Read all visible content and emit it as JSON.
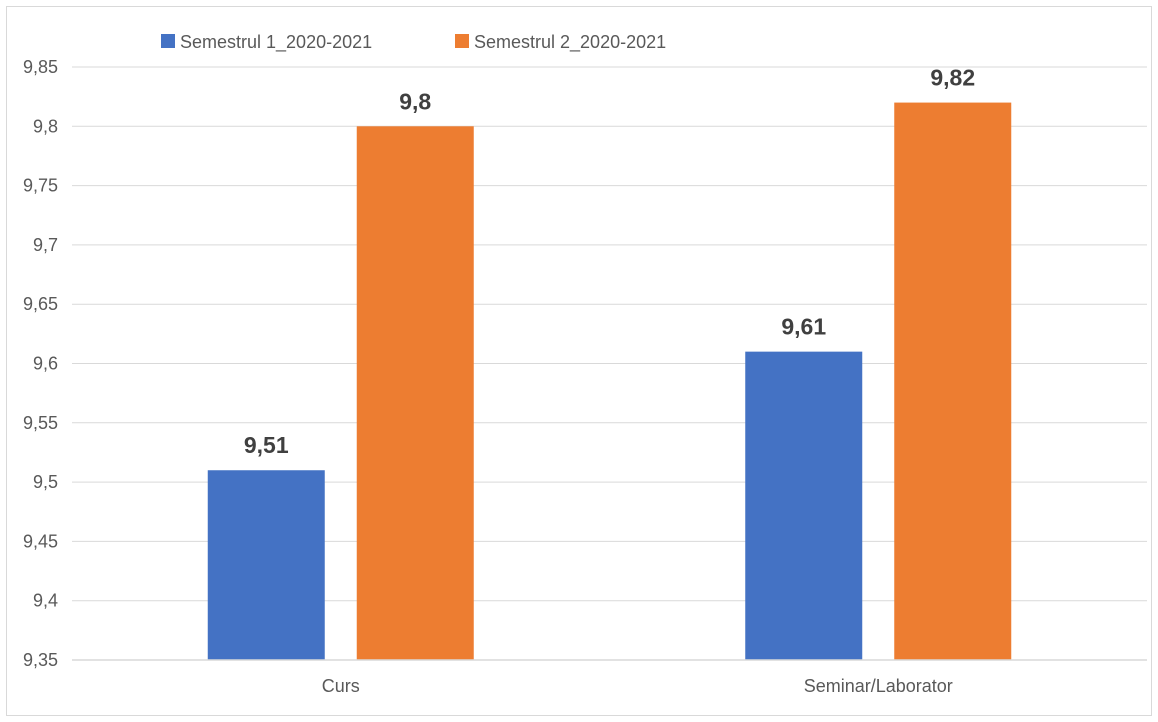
{
  "chart_data": {
    "type": "bar",
    "categories": [
      "Curs",
      "Seminar/Laborator"
    ],
    "series": [
      {
        "name": "Semestrul 1_2020-2021",
        "values": [
          9.51,
          9.61
        ],
        "labels": [
          "9,51",
          "9,61"
        ],
        "color": "#4472c4"
      },
      {
        "name": "Semestrul 2_2020-2021",
        "values": [
          9.8,
          9.82
        ],
        "labels": [
          "9,8",
          "9,82"
        ],
        "color": "#ed7d31"
      }
    ],
    "ylim": [
      9.35,
      9.85
    ],
    "yticks": [
      9.35,
      9.4,
      9.45,
      9.5,
      9.55,
      9.6,
      9.65,
      9.7,
      9.75,
      9.8,
      9.85
    ],
    "ytick_labels": [
      "9,35",
      "9,4",
      "9,45",
      "9,5",
      "9,55",
      "9,6",
      "9,65",
      "9,7",
      "9,75",
      "9,8",
      "9,85"
    ],
    "grid": true,
    "legend_position": "top-left",
    "gridline_color": "#d9d9d9",
    "axis_label_color": "#595959",
    "data_label_color": "#404040"
  }
}
